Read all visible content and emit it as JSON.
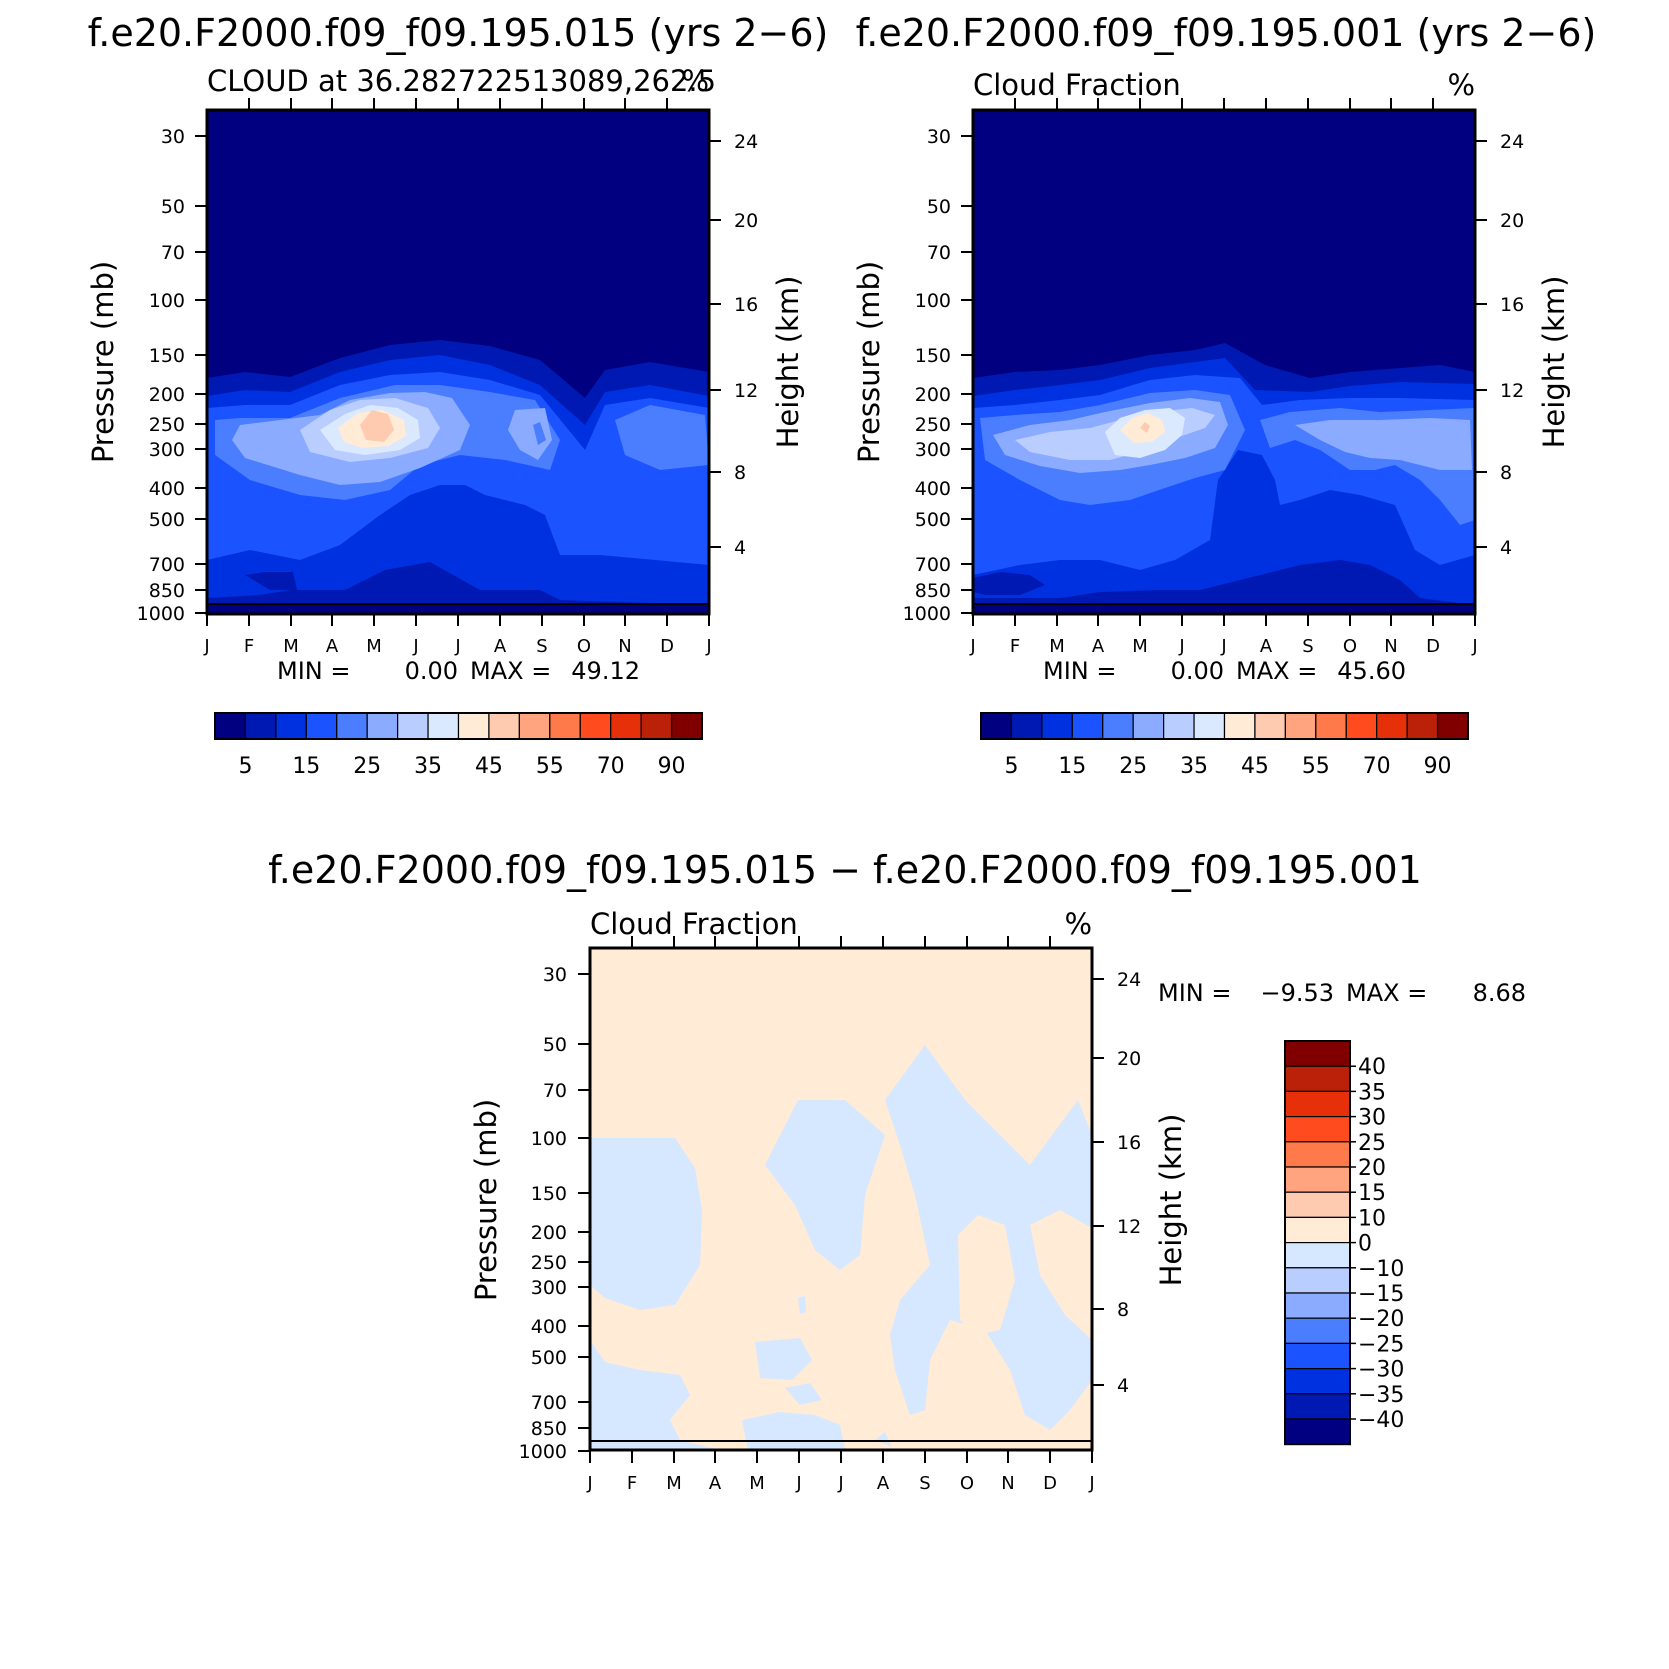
{
  "chart_data": [
    {
      "type": "heatmap",
      "title": "f.e20.F2000.f09_f09.195.015 (yrs 2−6)",
      "subtitle_left": "CLOUD at 36.282722513089,262.5",
      "subtitle_right": "%",
      "xlabel": "",
      "ylabel": "Pressure (mb)",
      "ylabel_right": "Height (km)",
      "x_ticks": [
        "J",
        "F",
        "M",
        "A",
        "M",
        "J",
        "J",
        "A",
        "S",
        "O",
        "N",
        "D",
        "J"
      ],
      "y_ticks": [
        "30",
        "50",
        "70",
        "100",
        "150",
        "200",
        "250",
        "300",
        "400",
        "500",
        "700",
        "850",
        "1000"
      ],
      "y_right_ticks": [
        "24",
        "20",
        "16",
        "12",
        "8",
        "4"
      ],
      "stats": {
        "min_label": "MIN =",
        "min": "0.00",
        "max_label": "MAX =",
        "max": "49.12"
      },
      "colorbar_labels": [
        "5",
        "15",
        "25",
        "35",
        "45",
        "55",
        "70",
        "90"
      ],
      "peak": {
        "month": "May",
        "pressure_mb": 270,
        "value": 49.12
      },
      "layers": [
        {
          "level": 5,
          "region": "180–900 mb all months, deepest Mar–Jun"
        },
        {
          "level": 25,
          "region": "Mar–Jun, 230–350 mb"
        },
        {
          "level": 45,
          "region": "May, ~270 mb"
        }
      ]
    },
    {
      "type": "heatmap",
      "title": "f.e20.F2000.f09_f09.195.001 (yrs 2−6)",
      "subtitle_left": "Cloud Fraction",
      "subtitle_right": "%",
      "xlabel": "",
      "ylabel": "Pressure (mb)",
      "ylabel_right": "Height (km)",
      "x_ticks": [
        "J",
        "F",
        "M",
        "A",
        "M",
        "J",
        "J",
        "A",
        "S",
        "O",
        "N",
        "D",
        "J"
      ],
      "y_ticks": [
        "30",
        "50",
        "70",
        "100",
        "150",
        "200",
        "250",
        "300",
        "400",
        "500",
        "700",
        "850",
        "1000"
      ],
      "y_right_ticks": [
        "24",
        "20",
        "16",
        "12",
        "8",
        "4"
      ],
      "stats": {
        "min_label": "MIN =",
        "min": "0.00",
        "max_label": "MAX =",
        "max": "45.60"
      },
      "colorbar_labels": [
        "5",
        "15",
        "25",
        "35",
        "45",
        "55",
        "70",
        "90"
      ],
      "peak": {
        "month": "May",
        "pressure_mb": 270,
        "value": 45.6
      }
    },
    {
      "type": "heatmap",
      "title": "f.e20.F2000.f09_f09.195.015 − f.e20.F2000.f09_f09.195.001",
      "subtitle_left": "Cloud Fraction",
      "subtitle_right": "%",
      "xlabel": "",
      "ylabel": "Pressure (mb)",
      "ylabel_right": "Height (km)",
      "x_ticks": [
        "J",
        "F",
        "M",
        "A",
        "M",
        "J",
        "J",
        "A",
        "S",
        "O",
        "N",
        "D",
        "J"
      ],
      "y_ticks": [
        "30",
        "50",
        "70",
        "100",
        "150",
        "200",
        "250",
        "300",
        "400",
        "500",
        "700",
        "850",
        "1000"
      ],
      "y_right_ticks": [
        "24",
        "20",
        "16",
        "12",
        "8",
        "4"
      ],
      "stats": {
        "min_label": "MIN =",
        "min": "−9.53",
        "max_label": "MAX =",
        "max": "8.68"
      },
      "colorbar_labels": [
        "40",
        "35",
        "30",
        "25",
        "20",
        "15",
        "10",
        "0",
        "−10",
        "−15",
        "−20",
        "−25",
        "−30",
        "−35",
        "−40"
      ]
    }
  ],
  "colors": {
    "seq": [
      "#000080",
      "#0019b3",
      "#0031e0",
      "#1a53ff",
      "#4a7eff",
      "#8aabff",
      "#b9cdff",
      "#dbe9ff",
      "#ffebd6",
      "#ffcbb0",
      "#ffa47f",
      "#ff7a4a",
      "#ff4b1e",
      "#e5300a",
      "#bb2008",
      "#800000"
    ],
    "div": [
      "#800000",
      "#bb2008",
      "#e5300a",
      "#ff4b1e",
      "#ff7a4a",
      "#ffa47f",
      "#ffcbb0",
      "#ffebd6",
      "#d6e8ff",
      "#b9cdff",
      "#8aabff",
      "#4a7eff",
      "#1a53ff",
      "#0031e0",
      "#0019b3",
      "#000080"
    ]
  }
}
